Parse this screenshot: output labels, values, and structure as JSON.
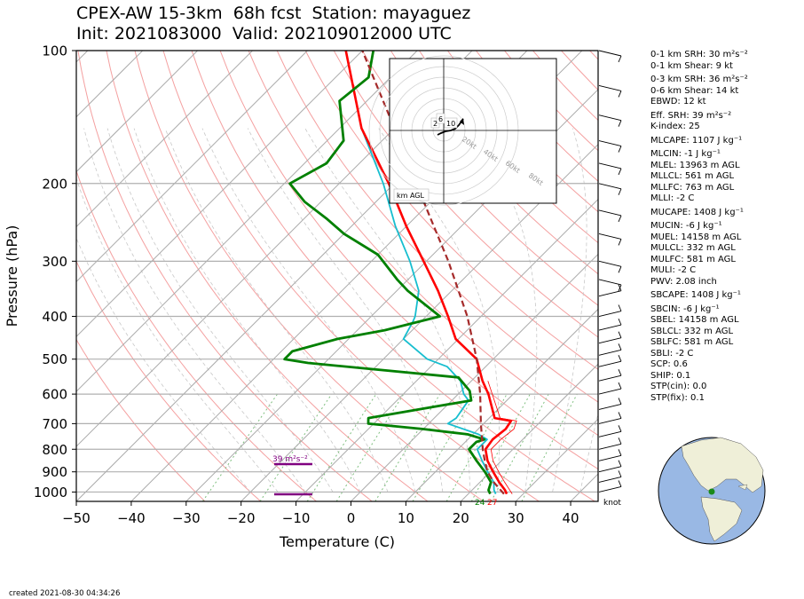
{
  "header": {
    "title_line1": "CPEX-AW 15-3km  68h fcst  Station: mayaguez",
    "title_line2": "Init: 2021083000  Valid: 202109012000 UTC"
  },
  "footer": {
    "created": "created 2021-08-30 04:34:26"
  },
  "indices": [
    "0-1 km SRH: 30 m²s⁻²",
    "0-1 km Shear: 9 kt",
    "0-3 km SRH: 36 m²s⁻²",
    "0-6 km Shear: 14 kt",
    "EBWD: 12 kt",
    "Eff. SRH: 39 m²s⁻²",
    "K-index: 25",
    "MLCAPE: 1107 J kg⁻¹",
    "MLCIN: -1 J kg⁻¹",
    "MLEL: 13963 m AGL",
    "MLLCL: 561 m AGL",
    "MLLFC: 763 m AGL",
    "MLLI: -2 C",
    "MUCAPE: 1408 J kg⁻¹",
    "MUCIN: -6 J kg⁻¹",
    "MUEL: 14158 m AGL",
    "MULCL: 332 m AGL",
    "MULFC: 581 m AGL",
    "MULI: -2 C",
    "PWV: 2.08 inch",
    "SBCAPE: 1408 J kg⁻¹",
    "SBCIN: -6 J kg⁻¹",
    "SBEL: 14158 m AGL",
    "SBLCL: 332 m AGL",
    "SBLFC: 581 m AGL",
    "SBLI: -2 C",
    "SCP: 0.6",
    "SHIP: 0.1",
    "STP(cin): 0.0",
    "STP(fix): 0.1"
  ],
  "indices_gap_before": [
    2,
    5,
    7,
    8,
    13,
    14,
    20,
    21
  ],
  "colors": {
    "temperature": "#ff0000",
    "dewpoint": "#008000",
    "wetbulb": "#17becf",
    "parcel": "#a52a2a",
    "srh_bar": "#800080",
    "isotherm": "#aaaaaa",
    "dry_adiabat": "#f4a0a0",
    "moist_adiabat": "#c8c8c8",
    "mixing_ratio": "#7fbf7f",
    "globe_ocean": "#99b8e4",
    "globe_land": "#efefd8"
  },
  "chart_data": {
    "type": "line",
    "title": "",
    "xlabel": "Temperature (C)",
    "ylabel": "Pressure (hPa)",
    "xlim": [
      -50,
      45
    ],
    "ylim": [
      1050,
      100
    ],
    "yscale": "log",
    "skew": true,
    "x_ticks": [
      "−50",
      "−40",
      "−30",
      "−20",
      "−10",
      "0",
      "10",
      "20",
      "30",
      "40"
    ],
    "x_tick_values": [
      -50,
      -40,
      -30,
      -20,
      -10,
      0,
      10,
      20,
      30,
      40
    ],
    "y_ticks": [
      "100",
      "200",
      "300",
      "400",
      "500",
      "600",
      "700",
      "800",
      "900",
      "1000"
    ],
    "y_tick_values": [
      100,
      200,
      300,
      400,
      500,
      600,
      700,
      800,
      900,
      1000
    ],
    "grid": true,
    "series": [
      {
        "key": "parcel",
        "points": [
          [
            1010,
            26.5
          ],
          [
            950,
            22.5
          ],
          [
            900,
            19.5
          ],
          [
            850,
            17.0
          ],
          [
            800,
            14.5
          ],
          [
            700,
            9.5
          ],
          [
            600,
            4.0
          ],
          [
            500,
            -3.0
          ],
          [
            400,
            -12.5
          ],
          [
            300,
            -26.0
          ],
          [
            250,
            -35.0
          ],
          [
            200,
            -46.0
          ],
          [
            150,
            -60.0
          ],
          [
            100,
            -80.0
          ]
        ]
      },
      {
        "key": "temperature",
        "points": [
          [
            1010,
            27.0
          ],
          [
            990,
            26.0
          ],
          [
            950,
            23.5
          ],
          [
            900,
            20.5
          ],
          [
            850,
            17.5
          ],
          [
            800,
            15.0
          ],
          [
            760,
            14.5
          ],
          [
            720,
            15.0
          ],
          [
            690,
            14.5
          ],
          [
            680,
            11.0
          ],
          [
            600,
            5.5
          ],
          [
            560,
            2.0
          ],
          [
            500,
            -3.0
          ],
          [
            450,
            -10.5
          ],
          [
            400,
            -16.0
          ],
          [
            350,
            -22.5
          ],
          [
            300,
            -30.5
          ],
          [
            250,
            -40.0
          ],
          [
            200,
            -51.0
          ],
          [
            150,
            -66.0
          ],
          [
            100,
            -83.0
          ]
        ]
      },
      {
        "key": "dewpoint",
        "points": [
          [
            1010,
            24.0
          ],
          [
            990,
            23.0
          ],
          [
            950,
            22.0
          ],
          [
            900,
            19.0
          ],
          [
            850,
            15.5
          ],
          [
            800,
            12.0
          ],
          [
            770,
            12.0
          ],
          [
            760,
            13.0
          ],
          [
            740,
            9.0
          ],
          [
            720,
            0.0
          ],
          [
            700,
            -11.0
          ],
          [
            680,
            -12.0
          ],
          [
            620,
            3.5
          ],
          [
            590,
            1.5
          ],
          [
            550,
            -3.0
          ],
          [
            510,
            -33.0
          ],
          [
            500,
            -38.0
          ],
          [
            480,
            -38.0
          ],
          [
            450,
            -32.0
          ],
          [
            430,
            -25.0
          ],
          [
            400,
            -17.5
          ],
          [
            350,
            -28.0
          ],
          [
            330,
            -32.0
          ],
          [
            290,
            -40.0
          ],
          [
            260,
            -50.0
          ],
          [
            240,
            -56.0
          ],
          [
            220,
            -63.0
          ],
          [
            200,
            -69.0
          ],
          [
            180,
            -66.0
          ],
          [
            160,
            -67.0
          ],
          [
            130,
            -75.0
          ],
          [
            115,
            -74.0
          ],
          [
            100,
            -78.0
          ]
        ]
      },
      {
        "key": "wetbulb",
        "points": [
          [
            1010,
            25.0
          ],
          [
            990,
            24.0
          ],
          [
            950,
            22.5
          ],
          [
            900,
            19.5
          ],
          [
            850,
            16.5
          ],
          [
            800,
            13.5
          ],
          [
            760,
            13.5
          ],
          [
            740,
            11.0
          ],
          [
            700,
            3.5
          ],
          [
            680,
            4.0
          ],
          [
            620,
            3.0
          ],
          [
            600,
            1.0
          ],
          [
            560,
            -2.0
          ],
          [
            520,
            -7.0
          ],
          [
            500,
            -12.0
          ],
          [
            450,
            -20.0
          ],
          [
            410,
            -21.5
          ],
          [
            400,
            -22.0
          ],
          [
            350,
            -26.0
          ],
          [
            300,
            -33.0
          ],
          [
            250,
            -42.0
          ],
          [
            200,
            -52.0
          ],
          [
            150,
            -66.0
          ],
          [
            100,
            -83.0
          ]
        ]
      }
    ],
    "annotations": [
      {
        "text": "39 m²s⁻²",
        "color": "#800080"
      },
      {
        "text": "24",
        "color": "#008000"
      },
      {
        "text": "27",
        "color": "#ff0000"
      },
      {
        "text": "knot",
        "color": "#000000"
      }
    ],
    "hodograph": {
      "ring_labels": [
        "20kt",
        "40kt",
        "60kt",
        "80kt"
      ],
      "height_labels": [
        "2",
        "6",
        "10"
      ],
      "legend": "km AGL"
    }
  }
}
